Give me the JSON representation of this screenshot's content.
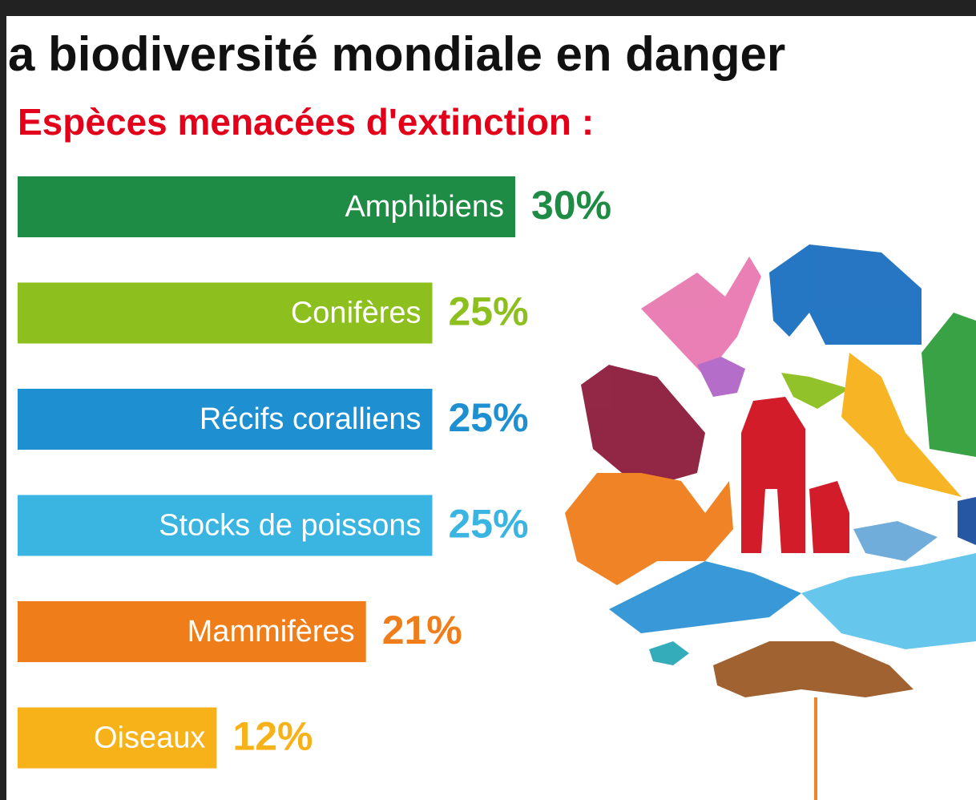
{
  "chart_data": {
    "type": "bar",
    "title": "a biodiversité mondiale en danger",
    "subtitle": "Espèces menacées d'extinction :",
    "categories": [
      "Amphibiens",
      "Conifères",
      "Récifs coralliens",
      "Stocks de poissons",
      "Mammifères",
      "Oiseaux"
    ],
    "values": [
      30,
      25,
      25,
      25,
      21,
      12
    ],
    "value_labels": [
      "30%",
      "25%",
      "25%",
      "25%",
      "21%",
      "12%"
    ],
    "colors": [
      "#1e8c45",
      "#8dbf1f",
      "#1e8fd0",
      "#3ab4e0",
      "#ef7d1a",
      "#f7b21a"
    ]
  }
}
